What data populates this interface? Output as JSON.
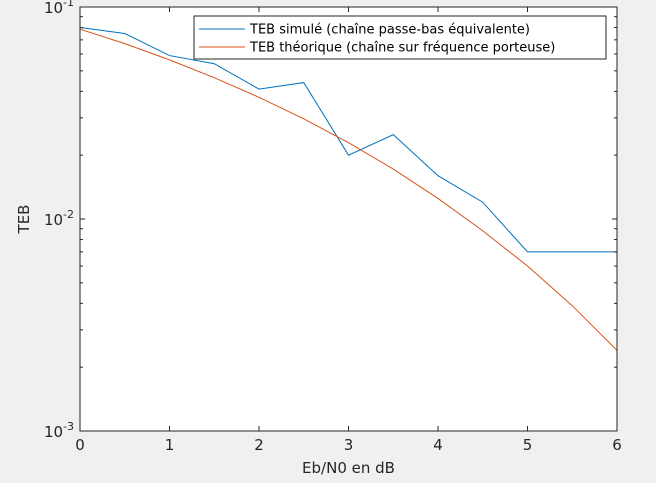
{
  "chart_data": {
    "type": "line",
    "title": "",
    "xlabel": "Eb/N0 en dB",
    "ylabel": "TEB",
    "xlim": [
      0,
      6
    ],
    "ylim": [
      0.001,
      0.1
    ],
    "yscale": "log",
    "grid": false,
    "legend_position": "top-right",
    "x_ticks": [
      "0",
      "1",
      "2",
      "3",
      "4",
      "5",
      "6"
    ],
    "y_ticks": [
      {
        "value": 0.1,
        "base": "10",
        "exp": "-1"
      },
      {
        "value": 0.01,
        "base": "10",
        "exp": "-2"
      },
      {
        "value": 0.001,
        "base": "10",
        "exp": "-3"
      }
    ],
    "series": [
      {
        "name": "TEB simulé (chaîne passe-bas équivalente)",
        "color": "#0072bd",
        "x": [
          0,
          0.5,
          1,
          1.5,
          2,
          2.5,
          3,
          3.5,
          4,
          4.5,
          5,
          5.5,
          6
        ],
        "y": [
          0.08,
          0.075,
          0.059,
          0.054,
          0.041,
          0.044,
          0.02,
          0.025,
          0.016,
          0.012,
          0.007,
          0.007,
          0.007
        ]
      },
      {
        "name": "TEB théorique (chaîne sur fréquence porteuse)",
        "color": "#d95319",
        "x": [
          0,
          0.5,
          1,
          1.5,
          2,
          2.5,
          3,
          3.5,
          4,
          4.5,
          5,
          5.5,
          6
        ],
        "y": [
          0.0786,
          0.0672,
          0.0563,
          0.0464,
          0.0375,
          0.0297,
          0.0229,
          0.0172,
          0.0125,
          0.0088,
          0.006,
          0.0039,
          0.0024
        ]
      }
    ]
  }
}
